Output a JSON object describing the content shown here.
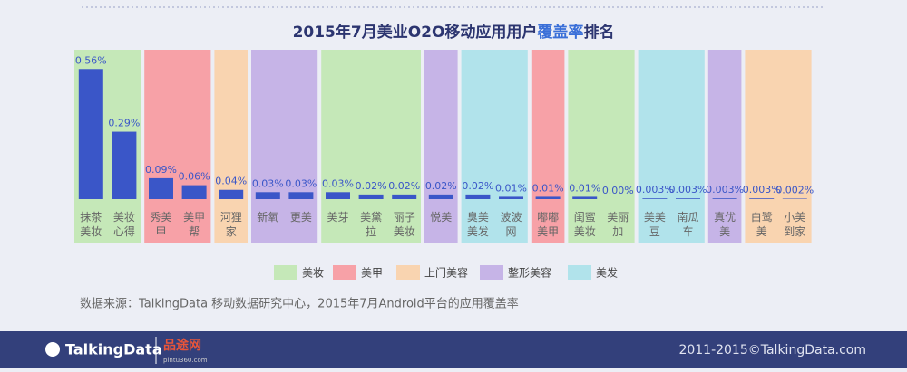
{
  "chart_data": {
    "type": "bar",
    "title": "2015年7月美业O2O移动应用用户",
    "title_highlight": "覆盖率",
    "title_end": "排名",
    "categories": [
      "抹茶美妆",
      "美妆心得",
      "秀美甲",
      "美甲帮",
      "河狸家",
      "新氧",
      "更美",
      "美芽",
      "美黛拉",
      "丽子美妆",
      "悦美",
      "臭美美发",
      "波波网",
      "嘟嘟美甲",
      "闺蜜美妆",
      "美丽加",
      "美美豆",
      "南瓜车",
      "真优美",
      "白鹭美",
      "小美到家"
    ],
    "values": [
      0.56,
      0.29,
      0.09,
      0.06,
      0.04,
      0.03,
      0.03,
      0.03,
      0.02,
      0.02,
      0.02,
      0.02,
      0.01,
      0.01,
      0.01,
      0,
      0.003,
      0.003,
      0.003,
      0.003,
      0.002
    ],
    "value_labels": [
      "0.56%",
      "0.29%",
      "0.09%",
      "0.06%",
      "0.04%",
      "0.03%",
      "0.03%",
      "0.03%",
      "0.02%",
      "0.02%",
      "0.02%",
      "0.02%",
      "0.01%",
      "0.01%",
      "0.01%",
      "0.00%",
      "0.003%",
      "0.003%",
      "0.003%",
      "0.003%",
      "0.002%"
    ],
    "color": "#3a56c8",
    "ylim": [
      0,
      0.6
    ],
    "groups": [
      0,
      0,
      1,
      1,
      2,
      3,
      3,
      0,
      0,
      0,
      3,
      4,
      4,
      1,
      0,
      0,
      4,
      4,
      3,
      2,
      2
    ],
    "legend": [
      {
        "name": "美妆",
        "color": "#c5e8b8"
      },
      {
        "name": "美甲",
        "color": "#f7a1a7"
      },
      {
        "name": "上门美容",
        "color": "#f9d4b0"
      },
      {
        "name": "整形美容",
        "color": "#c6b4e7"
      },
      {
        "name": "美发",
        "color": "#b1e3eb"
      }
    ],
    "source": "数据来源：TalkingData 移动数据研究中心，2015年7月Android平台的应用覆盖率"
  },
  "footer": {
    "brand": "TalkingData",
    "partner": "品途网",
    "partner_url": "pintu360.com",
    "copyright": "2011-2015©TalkingData.com"
  }
}
